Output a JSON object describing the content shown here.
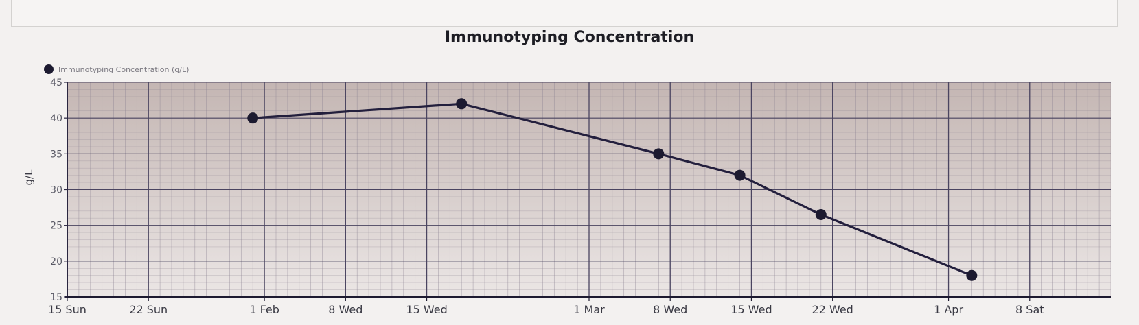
{
  "chart_data": {
    "type": "line",
    "title": "Immunotyping Concentration",
    "ylabel": "g/L",
    "xlabel": "",
    "legend": {
      "placement": "top-left",
      "entries": [
        "Immunotyping Concentration (g/L)"
      ]
    },
    "ylim": [
      15,
      45
    ],
    "xlim": [
      "2017-01-15",
      "2017-04-15"
    ],
    "yticks": [
      15,
      20,
      25,
      30,
      35,
      40,
      45
    ],
    "xticks": [
      {
        "date": "2017-01-15",
        "label": "15 Sun"
      },
      {
        "date": "2017-01-22",
        "label": "22 Sun"
      },
      {
        "date": "2017-02-01",
        "label": "1 Feb"
      },
      {
        "date": "2017-02-08",
        "label": "8 Wed"
      },
      {
        "date": "2017-02-15",
        "label": "15 Wed"
      },
      {
        "date": "2017-03-01",
        "label": "1 Mar"
      },
      {
        "date": "2017-03-08",
        "label": "8 Wed"
      },
      {
        "date": "2017-03-15",
        "label": "15 Wed"
      },
      {
        "date": "2017-03-22",
        "label": "22 Wed"
      },
      {
        "date": "2017-04-01",
        "label": "1 Apr"
      },
      {
        "date": "2017-04-08",
        "label": "8 Sat"
      }
    ],
    "grid": true,
    "series": [
      {
        "name": "Immunotyping Concentration (g/L)",
        "color": "#231f3d",
        "points": [
          {
            "x": "2017-01-31",
            "y": 40
          },
          {
            "x": "2017-02-18",
            "y": 42
          },
          {
            "x": "2017-03-07",
            "y": 35
          },
          {
            "x": "2017-03-14",
            "y": 32
          },
          {
            "x": "2017-03-21",
            "y": 26.5
          },
          {
            "x": "2017-04-03",
            "y": 18
          }
        ]
      }
    ]
  }
}
